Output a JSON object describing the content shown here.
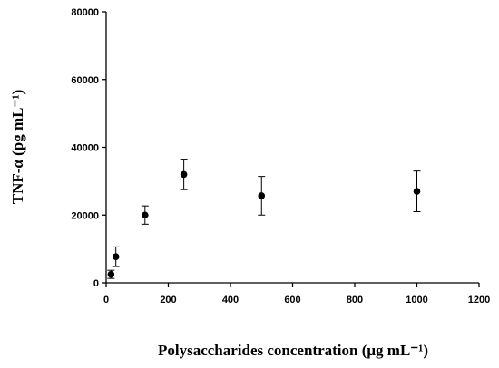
{
  "chart_data": {
    "type": "scatter",
    "xlabel": "Polysaccharides concentration (μg mL⁻¹)",
    "ylabel": "TNF-α (pg mL⁻¹)",
    "xlim": [
      0,
      1200
    ],
    "ylim": [
      0,
      80000
    ],
    "x_ticks": [
      0,
      200,
      400,
      600,
      800,
      1000,
      1200
    ],
    "y_ticks": [
      0,
      20000,
      40000,
      60000,
      80000
    ],
    "grid": false,
    "legend": false,
    "points": [
      {
        "x": 15.6,
        "y": 2500,
        "err": 1200
      },
      {
        "x": 31.25,
        "y": 7700,
        "err": 2900
      },
      {
        "x": 125,
        "y": 20000,
        "err": 2700
      },
      {
        "x": 250,
        "y": 32000,
        "err": 4500
      },
      {
        "x": 500,
        "y": 25700,
        "err": 5700
      },
      {
        "x": 1000,
        "y": 27000,
        "err": 6000
      }
    ],
    "marker_color": "#000000"
  }
}
